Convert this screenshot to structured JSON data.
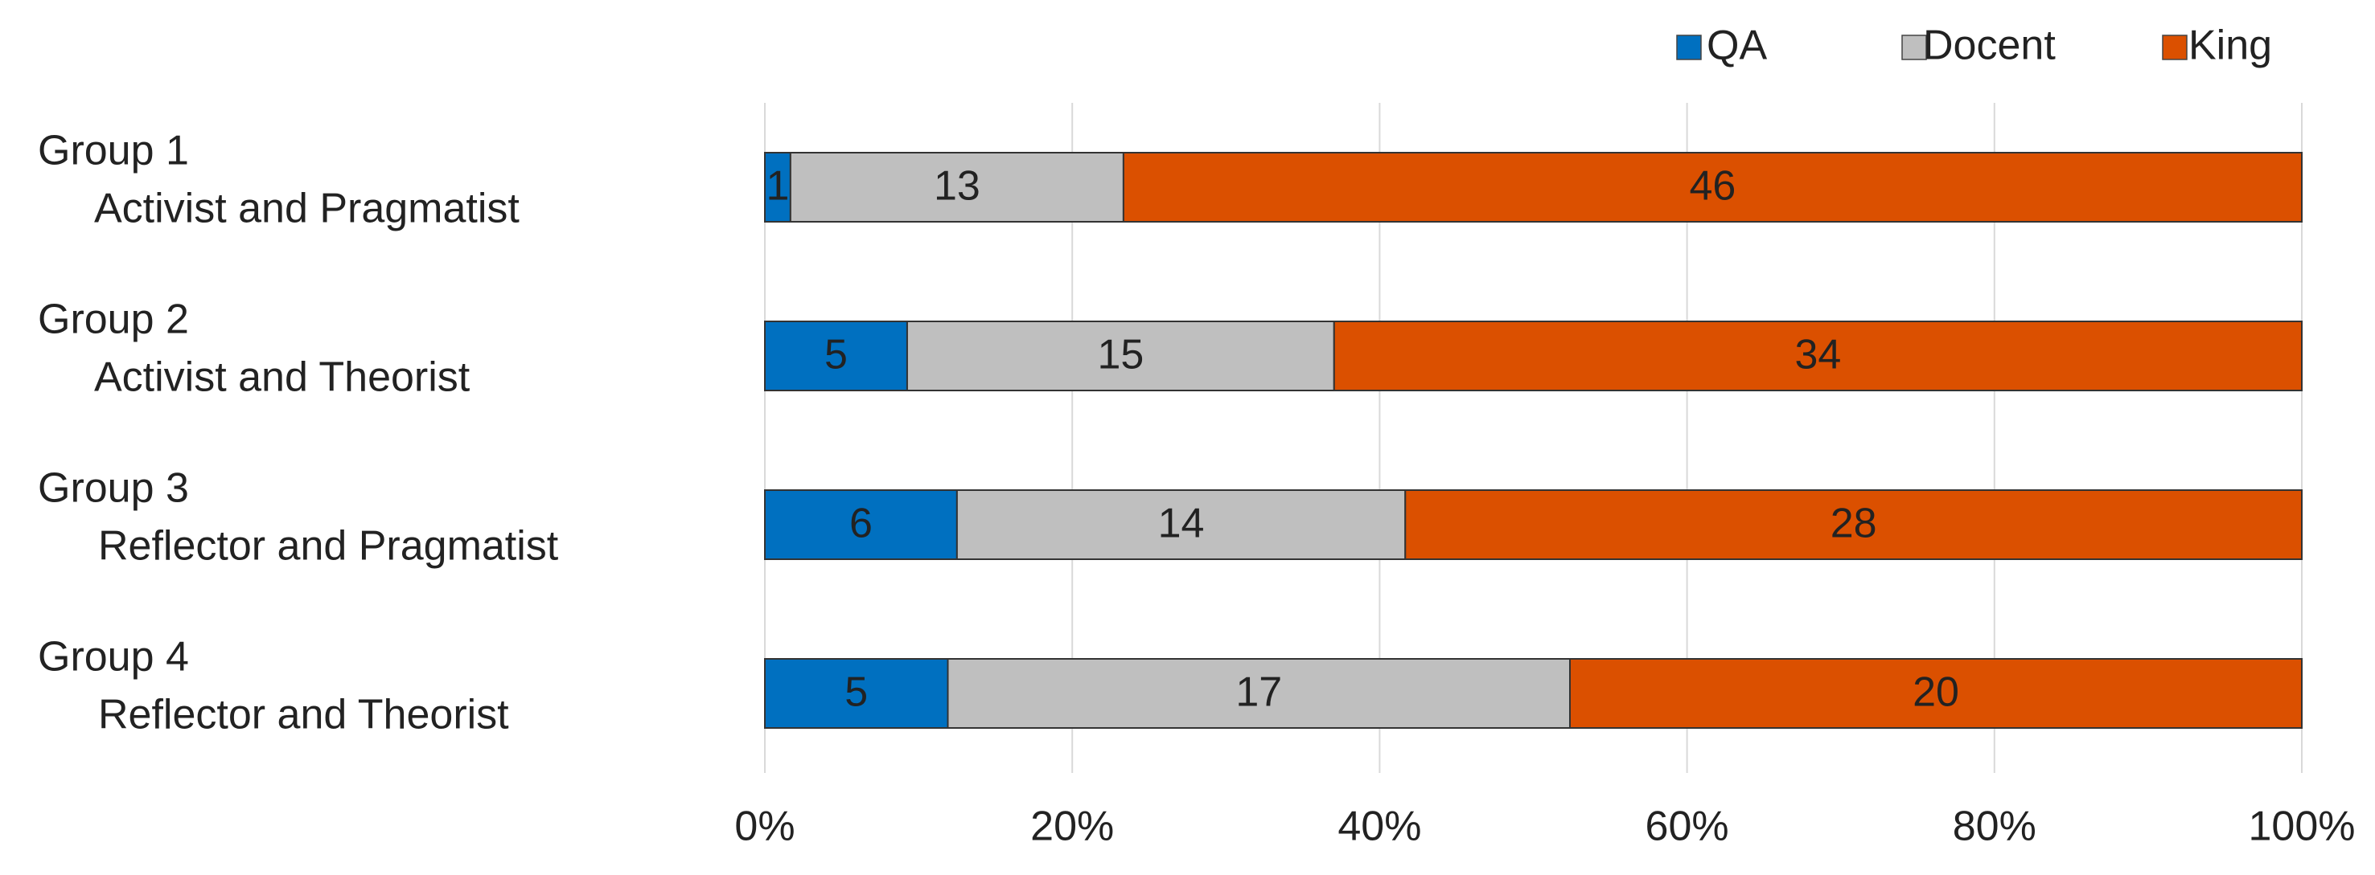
{
  "chart_data": {
    "type": "bar",
    "orientation": "horizontal",
    "stacked": "percent",
    "categories": [
      [
        "Group 1",
        "Activist and Pragmatist"
      ],
      [
        "Group 2",
        "Activist and Theorist"
      ],
      [
        "Group 3",
        "Reflector and Pragmatist"
      ],
      [
        "Group 4",
        "Reflector and Theorist"
      ]
    ],
    "series": [
      {
        "name": "QA",
        "color": "#0070c0",
        "values": [
          1,
          5,
          6,
          5
        ]
      },
      {
        "name": "Docent",
        "color": "#bfbfbf",
        "values": [
          13,
          15,
          14,
          17
        ]
      },
      {
        "name": "King",
        "color": "#db5000",
        "values": [
          46,
          34,
          28,
          20
        ]
      }
    ],
    "xlim": [
      0,
      100
    ],
    "xticks": [
      {
        "value": 0,
        "label": "0%"
      },
      {
        "value": 20,
        "label": "20%"
      },
      {
        "value": 40,
        "label": "40%"
      },
      {
        "value": 60,
        "label": "60%"
      },
      {
        "value": 80,
        "label": "80%"
      },
      {
        "value": 100,
        "label": "100%"
      }
    ],
    "grid": true,
    "legend": "top-right"
  }
}
